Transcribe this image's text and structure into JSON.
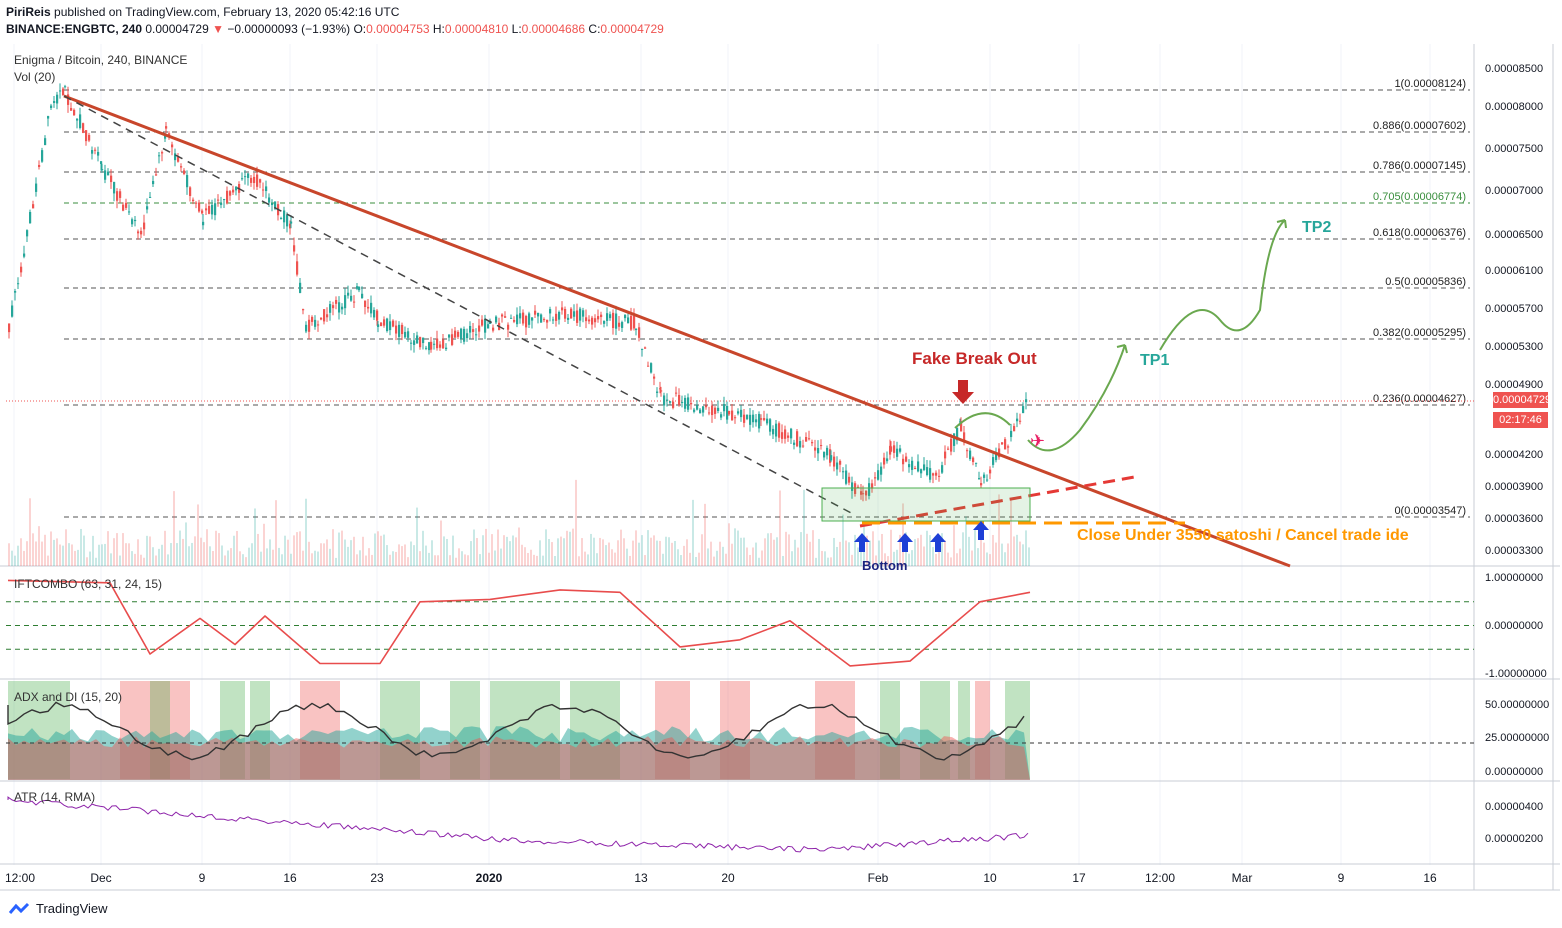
{
  "header": {
    "publisher": "PiriReis",
    "published_text": "published on TradingView.com, February 13, 2020 05:42:16 UTC",
    "symbol": "BINANCE:ENGBTC, 240",
    "last": "0.00004729",
    "change": "−0.00000093 (−1.93%)",
    "open_label": "O:",
    "open": "0.00004753",
    "high_label": "H:",
    "high": "0.00004810",
    "low_label": "L:",
    "low": "0.00004686",
    "close_label": "C:",
    "close": "0.00004729"
  },
  "legends": {
    "main": "Enigma / Bitcoin, 240, BINANCE",
    "volume": "Vol (20)",
    "iftcombo": "IFTCOMBO (63, 31, 24, 15)",
    "adx": "ADX and DI (15, 20)",
    "atr": "ATR (14, RMA)"
  },
  "price_axis": [
    "0.00008500",
    "0.00008000",
    "0.00007500",
    "0.00007000",
    "0.00006500",
    "0.00006100",
    "0.00005700",
    "0.00005300",
    "0.00004900",
    "0.00004200",
    "0.00003900",
    "0.00003600",
    "0.00003300"
  ],
  "current_price_tag": "0.00004729",
  "countdown_tag": "02:17:46",
  "fib_levels": [
    {
      "label": "1(0.00008124)",
      "price": 8.124e-05
    },
    {
      "label": "0.886(0.00007602)",
      "price": 7.602e-05
    },
    {
      "label": "0.786(0.00007145)",
      "price": 7.145e-05
    },
    {
      "label": "0.705(0.00006774)",
      "price": 6.774e-05
    },
    {
      "label": "0.618(0.00006376)",
      "price": 6.376e-05
    },
    {
      "label": "0.5(0.00005836)",
      "price": 5.836e-05
    },
    {
      "label": "0.382(0.00005295)",
      "price": 5.295e-05
    },
    {
      "label": "0.236(0.00004627)",
      "price": 4.627e-05
    },
    {
      "label": "0(0.00003547)",
      "price": 3.547e-05
    }
  ],
  "annotations": {
    "fake_breakout": "Fake Break Out",
    "tp1": "TP1",
    "tp2": "TP2",
    "close_under": "Close Under 3550 satoshi / Cancel trade ide",
    "bottom": "Bottom"
  },
  "ift_axis": [
    "1.00000000",
    "0.00000000",
    "-1.00000000"
  ],
  "adx_axis": [
    "50.00000000",
    "25.00000000",
    "0.00000000"
  ],
  "atr_axis": [
    "0.00000400",
    "0.00000200"
  ],
  "time_axis": [
    "12:00",
    "Dec",
    "9",
    "16",
    "23",
    "2020",
    "13",
    "20",
    "Feb",
    "10",
    "17",
    "12:00",
    "Mar",
    "9",
    "16"
  ],
  "footer": "TradingView",
  "colors": {
    "up": "#26a69a",
    "down": "#ef5350",
    "trendline": "#c8462b",
    "fib_green": "#388e3c",
    "annot_red": "#c62828",
    "annot_teal": "#26a69a",
    "annot_orange": "#ff9800",
    "ift": "#e84c4c",
    "atr": "#8e24aa"
  },
  "chart_data": {
    "type": "candlestick",
    "title": "Enigma / Bitcoin, 240, BINANCE",
    "price_close_points": [
      {
        "t": "Nov 25",
        "c": 5.4e-05
      },
      {
        "t": "Nov 27",
        "c": 7.9e-05
      },
      {
        "t": "Nov 28",
        "c": 8.1e-05
      },
      {
        "t": "Dec 1",
        "c": 7.2e-05
      },
      {
        "t": "Dec 4",
        "c": 6.4e-05
      },
      {
        "t": "Dec 6",
        "c": 7.6e-05
      },
      {
        "t": "Dec 9",
        "c": 6.6e-05
      },
      {
        "t": "Dec 12",
        "c": 7.1e-05
      },
      {
        "t": "Dec 16",
        "c": 6.5e-05
      },
      {
        "t": "Dec 18",
        "c": 5.4e-05
      },
      {
        "t": "Dec 21",
        "c": 5.8e-05
      },
      {
        "t": "Dec 23",
        "c": 5.5e-05
      },
      {
        "t": "Dec 28",
        "c": 5.2e-05
      },
      {
        "t": "Jan 2",
        "c": 5.45e-05
      },
      {
        "t": "Jan 8",
        "c": 5.55e-05
      },
      {
        "t": "Jan 12",
        "c": 5.45e-05
      },
      {
        "t": "Jan 14",
        "c": 4.7e-05
      },
      {
        "t": "Jan 20",
        "c": 4.55e-05
      },
      {
        "t": "Jan 24",
        "c": 4.45e-05
      },
      {
        "t": "Jan 27",
        "c": 4.1e-05
      },
      {
        "t": "Jan 30",
        "c": 3.7e-05
      },
      {
        "t": "Feb 2",
        "c": 4.15e-05
      },
      {
        "t": "Feb 6",
        "c": 3.9e-05
      },
      {
        "t": "Feb 8",
        "c": 4.4e-05
      },
      {
        "t": "Feb 10",
        "c": 3.85e-05
      },
      {
        "t": "Feb 12",
        "c": 4.3e-05
      },
      {
        "t": "Feb 13",
        "c": 4.729e-05
      }
    ],
    "ift_points": [
      {
        "t": "Nov 25",
        "v": 0.95
      },
      {
        "t": "Dec 1",
        "v": 0.9
      },
      {
        "t": "Dec 4",
        "v": -0.6
      },
      {
        "t": "Dec 7",
        "v": 0.15
      },
      {
        "t": "Dec 10",
        "v": -0.4
      },
      {
        "t": "Dec 13",
        "v": 0.2
      },
      {
        "t": "Dec 17",
        "v": -0.8
      },
      {
        "t": "Dec 23",
        "v": -0.8
      },
      {
        "t": "Dec 27",
        "v": 0.5
      },
      {
        "t": "Jan 2",
        "v": 0.55
      },
      {
        "t": "Jan 8",
        "v": 0.75
      },
      {
        "t": "Jan 12",
        "v": 0.7
      },
      {
        "t": "Jan 16",
        "v": -0.45
      },
      {
        "t": "Jan 22",
        "v": -0.3
      },
      {
        "t": "Jan 26",
        "v": 0.1
      },
      {
        "t": "Feb 1",
        "v": -0.85
      },
      {
        "t": "Feb 6",
        "v": -0.75
      },
      {
        "t": "Feb 10",
        "v": 0.5
      },
      {
        "t": "Feb 13",
        "v": 0.7
      }
    ],
    "ift_ylim": [
      -1,
      1
    ]
  }
}
